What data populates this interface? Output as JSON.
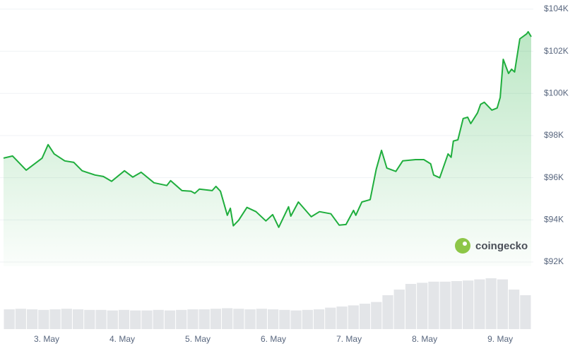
{
  "chart_data": {
    "type": "line",
    "color": "#1fae3d",
    "grid": true,
    "x": [
      2.43,
      2.55,
      2.73,
      2.94,
      3.02,
      3.1,
      3.24,
      3.36,
      3.47,
      3.64,
      3.75,
      3.86,
      4.03,
      4.14,
      4.25,
      4.42,
      4.59,
      4.64,
      4.79,
      4.91,
      4.96,
      5.02,
      5.19,
      5.24,
      5.3,
      5.39,
      5.43,
      5.47,
      5.54,
      5.65,
      5.77,
      5.9,
      5.99,
      6.07,
      6.2,
      6.23,
      6.33,
      6.5,
      6.61,
      6.76,
      6.87,
      6.96,
      7.06,
      7.09,
      7.17,
      7.28,
      7.36,
      7.43,
      7.5,
      7.62,
      7.71,
      7.88,
      7.99,
      8.08,
      8.12,
      8.2,
      8.31,
      8.35,
      8.38,
      8.44,
      8.51,
      8.57,
      8.61,
      8.7,
      8.74,
      8.79,
      8.89,
      8.96,
      9.0,
      9.04,
      9.11,
      9.15,
      9.19,
      9.26,
      9.35,
      9.37,
      9.41
    ],
    "values": [
      96930,
      97030,
      96360,
      96930,
      97570,
      97130,
      96800,
      96730,
      96330,
      96130,
      96060,
      95830,
      96330,
      96030,
      96260,
      95760,
      95630,
      95860,
      95390,
      95360,
      95260,
      95460,
      95390,
      95590,
      95360,
      94220,
      94550,
      93720,
      93980,
      94590,
      94390,
      93950,
      94250,
      93650,
      94620,
      94180,
      94850,
      94150,
      94390,
      94290,
      93750,
      93780,
      94450,
      94220,
      94850,
      94960,
      96400,
      97300,
      96460,
      96300,
      96800,
      96860,
      96860,
      96660,
      96130,
      96000,
      97130,
      96970,
      97740,
      97800,
      98810,
      98870,
      98570,
      99080,
      99480,
      99580,
      99210,
      99310,
      99810,
      101620,
      100950,
      101150,
      101020,
      102590,
      102830,
      102930,
      102690
    ],
    "xlim": [
      2.43,
      9.41
    ],
    "xticks": [
      {
        "value": 3,
        "label": "3. May"
      },
      {
        "value": 4,
        "label": "4. May"
      },
      {
        "value": 5,
        "label": "5. May"
      },
      {
        "value": 6,
        "label": "6. May"
      },
      {
        "value": 7,
        "label": "7. May"
      },
      {
        "value": 8,
        "label": "8. May"
      },
      {
        "value": 9,
        "label": "9. May"
      }
    ],
    "ylim": [
      91800,
      104400
    ],
    "yticks": [
      {
        "value": 92000,
        "label": "$92K"
      },
      {
        "value": 94000,
        "label": "$94K"
      },
      {
        "value": 96000,
        "label": "$96K"
      },
      {
        "value": 98000,
        "label": "$98K"
      },
      {
        "value": 100000,
        "label": "$100K"
      },
      {
        "value": 102000,
        "label": "$102K"
      },
      {
        "value": 104000,
        "label": "$104K"
      }
    ],
    "volume": {
      "color": "#e3e5e8",
      "lim": [
        0,
        100
      ],
      "values": [
        35,
        36,
        35,
        34,
        35,
        36,
        35,
        34,
        34,
        33,
        34,
        33,
        33,
        34,
        33,
        34,
        35,
        35,
        36,
        37,
        36,
        35,
        36,
        35,
        34,
        33,
        34,
        35,
        38,
        40,
        42,
        45,
        48,
        60,
        70,
        80,
        82,
        84,
        84,
        85,
        86,
        88,
        90,
        88,
        70,
        60
      ]
    },
    "watermark": "coingecko"
  }
}
